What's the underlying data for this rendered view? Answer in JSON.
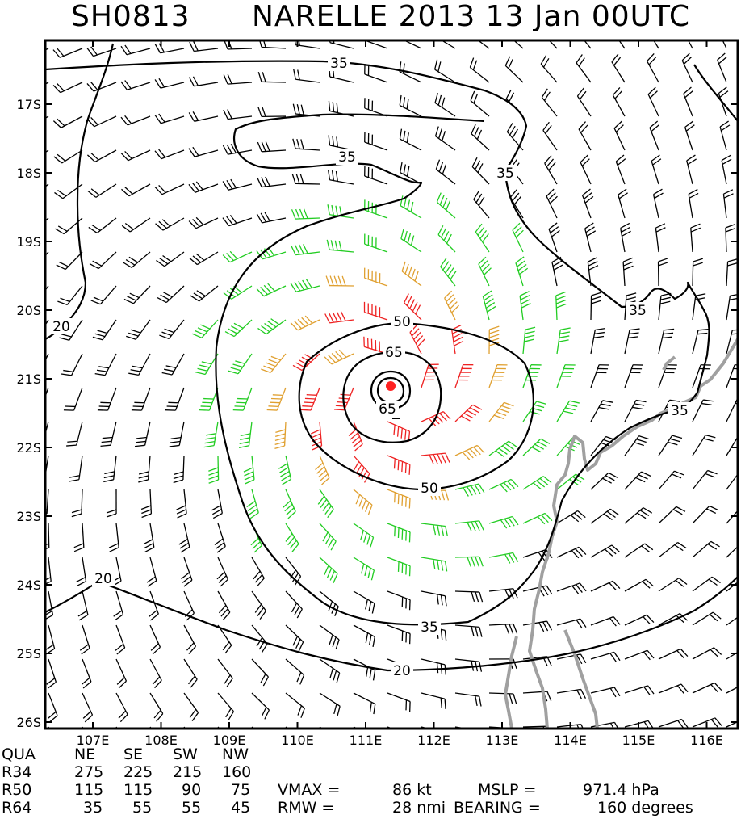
{
  "header": {
    "storm_id": "SH0813",
    "title": "NARELLE 2013 13 Jan 00UTC"
  },
  "map": {
    "lat_labels": [
      "17S",
      "18S",
      "19S",
      "20S",
      "21S",
      "22S",
      "23S",
      "24S",
      "25S",
      "26S"
    ],
    "lon_labels": [
      "107E",
      "108E",
      "109E",
      "110E",
      "111E",
      "112E",
      "113E",
      "114E",
      "115E",
      "116E"
    ],
    "contour_labels": [
      "35",
      "35",
      "35",
      "35",
      "35",
      "35",
      "20",
      "20",
      "20",
      "50",
      "50",
      "65",
      "65"
    ],
    "center": {
      "lat": -21.15,
      "lon": 111.35
    },
    "wind_colors": {
      "below_34": "#000000",
      "gale_34_49": "#22cc22",
      "storm_50_63": "#e0a030",
      "hurricane_64_plus": "#ee2222",
      "contour": "#000000",
      "coastline": "#a0a0a0",
      "center_marker": "#ff2222"
    }
  },
  "wind_radii": {
    "header": [
      "QUA",
      "NE",
      "SE",
      "SW",
      "NW"
    ],
    "rows": [
      {
        "label": "R34",
        "values": [
          "275",
          "225",
          "215",
          "160"
        ]
      },
      {
        "label": "R50",
        "values": [
          "115",
          "115",
          "90",
          "75"
        ]
      },
      {
        "label": "R64",
        "values": [
          "35",
          "55",
          "55",
          "45"
        ]
      }
    ]
  },
  "intensity": {
    "vmax_label": "VMAX =",
    "vmax_value": "86 kt",
    "mslp_label": "MSLP =",
    "mslp_value": "971.4 hPa",
    "rmw_label": "RMW =",
    "rmw_value": "28 nmi",
    "bearing_label": "BEARING =",
    "bearing_value": "160 degrees"
  }
}
